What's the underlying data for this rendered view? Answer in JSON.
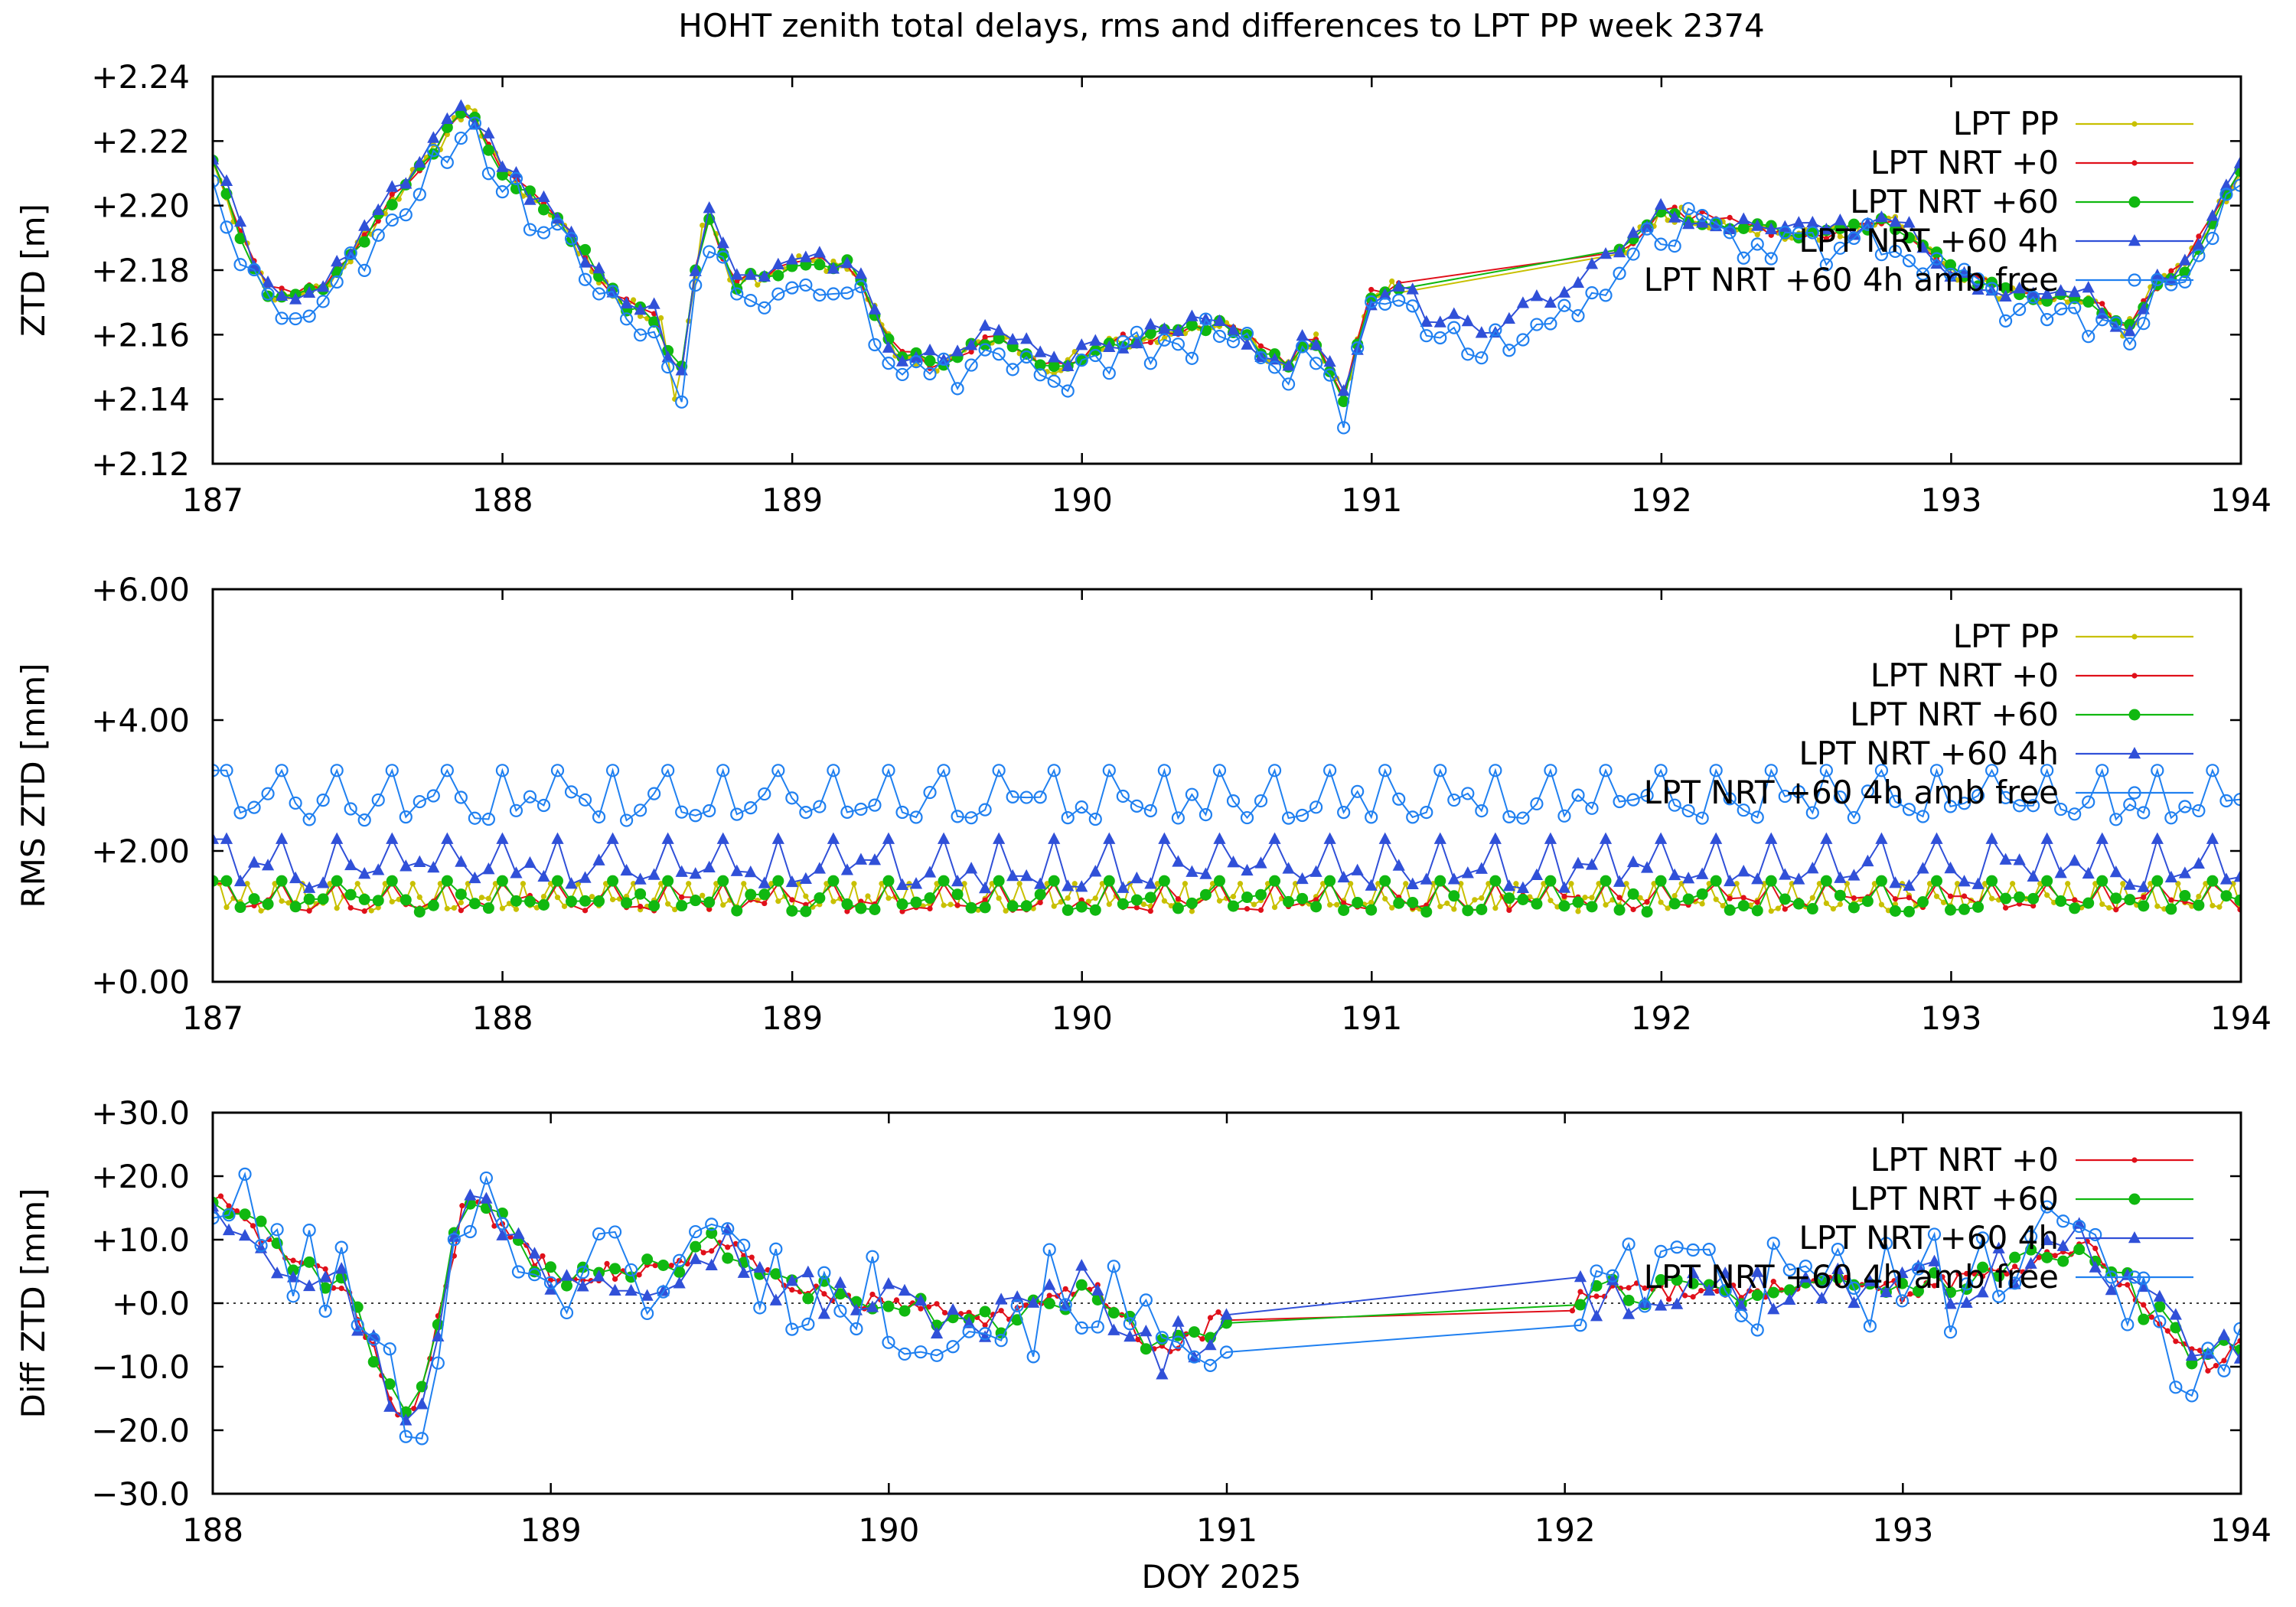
{
  "title": "HOHT zenith total delays, rms and differences to LPT PP week 2374",
  "xlabel": "DOY 2025",
  "colors": {
    "pp": "#c8c000",
    "nrt0": "#e0101a",
    "nrt60": "#10b810",
    "nrt60_4h": "#3050d8",
    "nrt60_4h_af": "#2080f0"
  },
  "chart_data": [
    {
      "type": "line",
      "name_id": "ztd",
      "ylabel": "ZTD [m]",
      "xlim": [
        187,
        194
      ],
      "ylim": [
        2.12,
        2.24
      ],
      "xticks": [
        "187",
        "188",
        "189",
        "190",
        "191",
        "192",
        "193",
        "194"
      ],
      "yticks": [
        "+2.12",
        "+2.14",
        "+2.16",
        "+2.18",
        "+2.20",
        "+2.22",
        "+2.24"
      ],
      "legend": [
        "LPT PP",
        "LPT NRT +0",
        "LPT NRT +60",
        "LPT NRT +60 4h",
        "LPT NRT +60 4h amb free"
      ],
      "anchors": {
        "x": [
          187.0,
          187.1,
          187.2,
          187.4,
          187.6,
          187.75,
          187.88,
          188.0,
          188.2,
          188.4,
          188.55,
          188.6,
          188.7,
          188.8,
          189.0,
          189.2,
          189.35,
          189.5,
          189.7,
          189.9,
          190.1,
          190.3,
          190.5,
          190.7,
          190.8,
          190.9,
          191.0,
          191.1,
          191.2,
          191.4,
          191.6,
          191.8,
          192.0,
          192.2,
          192.5,
          192.8,
          193.0,
          193.2,
          193.5,
          193.6,
          193.7,
          193.8,
          194.0
        ],
        "y": [
          2.215,
          2.19,
          2.172,
          2.175,
          2.2,
          2.215,
          2.232,
          2.21,
          2.195,
          2.17,
          2.165,
          2.138,
          2.2,
          2.175,
          2.182,
          2.182,
          2.155,
          2.15,
          2.16,
          2.15,
          2.157,
          2.16,
          2.163,
          2.15,
          2.16,
          2.14,
          2.172,
          2.175,
          2.165,
          2.16,
          2.17,
          2.18,
          2.198,
          2.195,
          2.19,
          2.195,
          2.18,
          2.172,
          2.17,
          2.16,
          2.175,
          2.18,
          2.21
        ]
      },
      "series": [
        {
          "key": "pp",
          "style": "dot",
          "seed": 11,
          "dx": 0.0238,
          "start": 187.0,
          "end": 194.0,
          "gap": [
            191.1,
            191.85
          ],
          "noise": 0.0025,
          "offset": 0.0
        },
        {
          "key": "nrt0",
          "style": "dot",
          "seed": 23,
          "dx": 0.0476,
          "start": 187.0,
          "end": 194.0,
          "gap": [
            191.1,
            191.85
          ],
          "noise": 0.002,
          "offset": 0.0005
        },
        {
          "key": "nrt60",
          "style": "circle-filled",
          "seed": 37,
          "dx": 0.0476,
          "start": 187.0,
          "end": 194.0,
          "gap": [
            191.1,
            191.85
          ],
          "noise": 0.002,
          "offset": 0.0
        },
        {
          "key": "nrt60_4h",
          "style": "triangle",
          "seed": 41,
          "dx": 0.0476,
          "start": 187.0,
          "end": 194.0,
          "gap": [],
          "noise": 0.0035,
          "offset": 0.001
        },
        {
          "key": "nrt60_4h_af",
          "style": "circle-open",
          "seed": 53,
          "dx": 0.0476,
          "start": 187.0,
          "end": 194.0,
          "gap": [],
          "noise": 0.007,
          "offset": -0.004
        }
      ]
    },
    {
      "type": "line",
      "name_id": "rms",
      "ylabel": "RMS ZTD [mm]",
      "xlim": [
        187,
        194
      ],
      "ylim": [
        0,
        6
      ],
      "xticks": [
        "187",
        "188",
        "189",
        "190",
        "191",
        "192",
        "193",
        "194"
      ],
      "yticks": [
        "+0.00",
        "+2.00",
        "+4.00",
        "+6.00"
      ],
      "legend": [
        "LPT PP",
        "LPT NRT +0",
        "LPT NRT +60",
        "LPT NRT +60 4h",
        "LPT NRT +60 4h amb free"
      ],
      "series": [
        {
          "key": "pp",
          "style": "dot",
          "seed": 61,
          "dx": 0.0238,
          "start": 187.0,
          "end": 194.0,
          "base": 1.15,
          "amp": 0.25
        },
        {
          "key": "nrt0",
          "style": "dot",
          "seed": 67,
          "dx": 0.0476,
          "start": 187.0,
          "end": 194.0,
          "base": 1.15,
          "amp": 0.25
        },
        {
          "key": "nrt60",
          "style": "circle-filled",
          "seed": 71,
          "dx": 0.0476,
          "start": 187.0,
          "end": 194.0,
          "base": 1.15,
          "amp": 0.28
        },
        {
          "key": "nrt60_4h",
          "style": "triangle",
          "seed": 73,
          "dx": 0.0476,
          "start": 187.0,
          "end": 194.0,
          "base": 1.55,
          "amp": 0.45
        },
        {
          "key": "nrt60_4h_af",
          "style": "circle-open",
          "seed": 79,
          "dx": 0.0476,
          "start": 187.0,
          "end": 194.0,
          "base": 2.6,
          "amp": 0.45
        }
      ]
    },
    {
      "type": "line",
      "name_id": "diff",
      "ylabel": "Diff ZTD [mm]",
      "xlim": [
        188,
        194
      ],
      "ylim": [
        -30,
        30
      ],
      "xticks": [
        "188",
        "189",
        "190",
        "191",
        "192",
        "193",
        "194"
      ],
      "yticks": [
        "−30.0",
        "−20.0",
        "−10.0",
        "+0.0",
        "+10.0",
        "+20.0",
        "+30.0"
      ],
      "legend": [
        "LPT NRT +0",
        "LPT NRT +60",
        "LPT NRT +60 4h",
        "LPT NRT +60 4h amb free"
      ],
      "anchors": {
        "x": [
          188.0,
          188.2,
          188.4,
          188.55,
          188.6,
          188.75,
          189.0,
          189.3,
          189.5,
          189.7,
          190.0,
          190.3,
          190.6,
          190.8,
          191.0,
          192.0,
          192.2,
          192.5,
          192.8,
          193.0,
          193.3,
          193.55,
          193.7,
          193.9,
          194.0
        ],
        "y": [
          17,
          8,
          2,
          -17,
          -18,
          17,
          5,
          5,
          10,
          2,
          0,
          -3,
          3,
          -8,
          -2,
          0,
          2,
          2,
          3,
          2,
          5,
          10,
          0,
          -10,
          -6
        ]
      },
      "series": [
        {
          "key": "nrt0",
          "style": "dot",
          "seed": 83,
          "dx": 0.0238,
          "start": 188.0,
          "end": 194.0,
          "gap": [
            191.0,
            192.0
          ],
          "noise": 1.5
        },
        {
          "key": "nrt60",
          "style": "circle-filled",
          "seed": 89,
          "dx": 0.0476,
          "start": 188.0,
          "end": 194.0,
          "gap": [
            191.0,
            192.0
          ],
          "noise": 2.5
        },
        {
          "key": "nrt60_4h",
          "style": "triangle",
          "seed": 97,
          "dx": 0.0476,
          "start": 188.0,
          "end": 194.0,
          "gap": [
            191.0,
            192.0
          ],
          "noise": 4.0
        },
        {
          "key": "nrt60_4h_af",
          "style": "circle-open",
          "seed": 101,
          "dx": 0.0476,
          "start": 188.0,
          "end": 194.0,
          "gap": [
            191.0,
            192.0
          ],
          "noise": 8.0
        }
      ]
    }
  ]
}
